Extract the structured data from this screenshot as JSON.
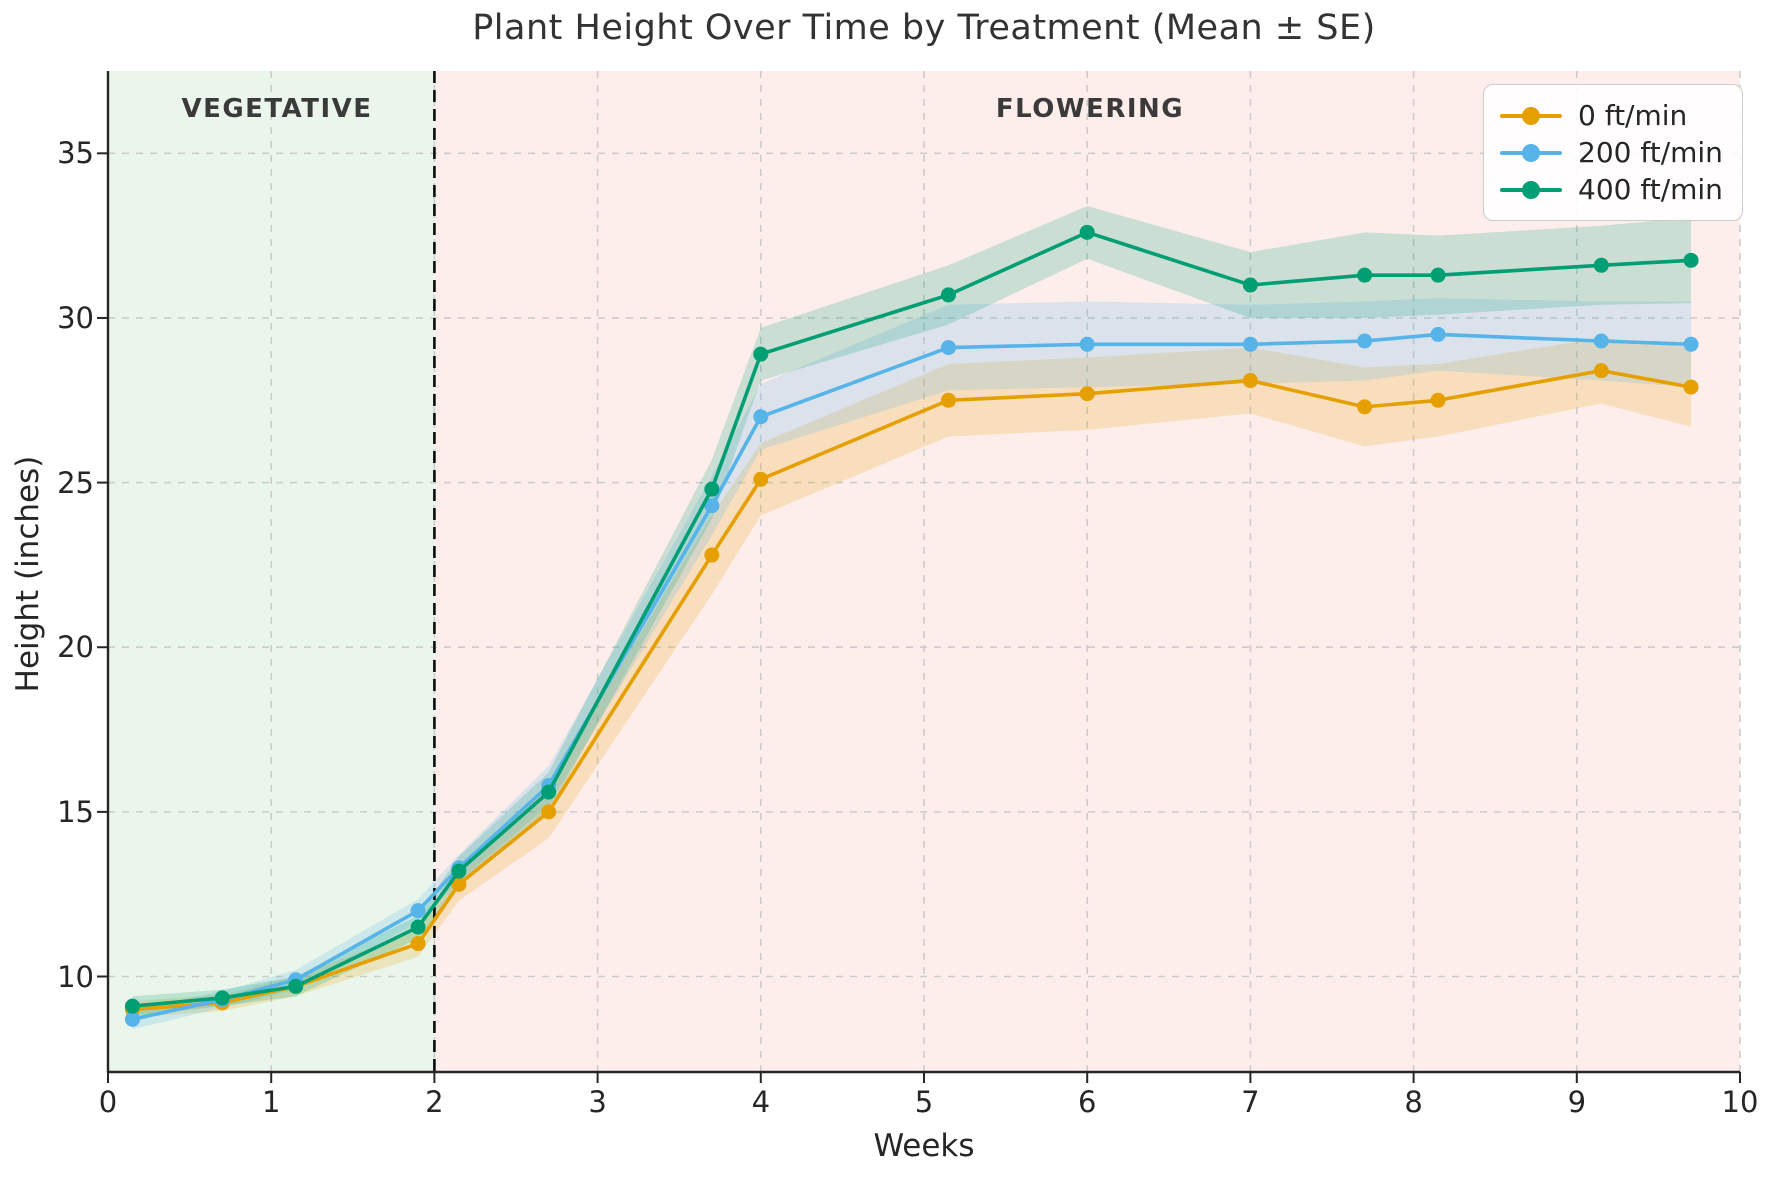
{
  "figure": {
    "title": "Plant Height Over Time by Treatment (Mean ± SE)",
    "xlabel": "Weeks",
    "ylabel": "Height (inches)"
  },
  "annotations": {
    "vegetative_label": "VEGETATIVE",
    "flowering_label": "FLOWERING"
  },
  "colors": {
    "grid": "#cccccc",
    "spine": "#262626",
    "divider": "#0a0a0a",
    "vegetative_bg": "#eaf6eb",
    "flowering_bg": "#fdeeec",
    "text": "#262626"
  },
  "chart_data": {
    "type": "line",
    "title": "Plant Height Over Time by Treatment (Mean ± SE)",
    "xlabel": "Weeks",
    "ylabel": "Height (inches)",
    "xlim": [
      0,
      10
    ],
    "ylim": [
      7.1,
      37.5
    ],
    "x_ticks": [
      0,
      1,
      2,
      3,
      4,
      5,
      6,
      7,
      8,
      9,
      10
    ],
    "y_ticks": [
      10,
      15,
      20,
      25,
      30,
      35
    ],
    "grid": true,
    "legend_position": "upper right",
    "x": [
      0.15,
      0.7,
      1.15,
      1.9,
      2.15,
      2.7,
      3.7,
      4.0,
      5.15,
      6.0,
      7.0,
      7.7,
      8.15,
      9.15,
      9.7
    ],
    "series": [
      {
        "name": "0 ft/min",
        "color": "#E69F00",
        "values": [
          9.0,
          9.2,
          9.7,
          11.0,
          12.8,
          15.0,
          22.8,
          25.1,
          27.5,
          27.7,
          28.1,
          27.3,
          27.5,
          28.4,
          27.9
        ],
        "se": [
          0.25,
          0.25,
          0.3,
          0.4,
          0.5,
          0.8,
          1.2,
          1.1,
          1.1,
          1.1,
          1.0,
          1.2,
          1.1,
          1.0,
          1.2
        ]
      },
      {
        "name": "200 ft/min",
        "color": "#56B4E9",
        "values": [
          8.7,
          9.3,
          9.9,
          12.0,
          13.3,
          15.8,
          24.3,
          27.0,
          29.1,
          29.2,
          29.2,
          29.3,
          29.5,
          29.3,
          29.2
        ],
        "se": [
          0.3,
          0.25,
          0.3,
          0.35,
          0.4,
          0.6,
          0.9,
          1.0,
          1.3,
          1.3,
          1.2,
          1.2,
          1.1,
          1.2,
          1.3
        ]
      },
      {
        "name": "400 ft/min",
        "color": "#009E73",
        "values": [
          9.1,
          9.35,
          9.7,
          11.5,
          13.2,
          15.6,
          24.8,
          28.9,
          30.7,
          32.6,
          31.0,
          31.3,
          31.3,
          31.6,
          31.75
        ],
        "se": [
          0.3,
          0.25,
          0.3,
          0.35,
          0.45,
          0.6,
          0.9,
          0.8,
          0.9,
          0.8,
          1.0,
          1.3,
          1.2,
          1.2,
          1.3
        ]
      }
    ],
    "phases": [
      {
        "label": "VEGETATIVE",
        "x_start": 0,
        "x_end": 2,
        "bg": "#eaf6eb"
      },
      {
        "label": "FLOWERING",
        "x_start": 2,
        "x_end": 10,
        "bg": "#fdeeec"
      }
    ],
    "divider_x": 2
  }
}
